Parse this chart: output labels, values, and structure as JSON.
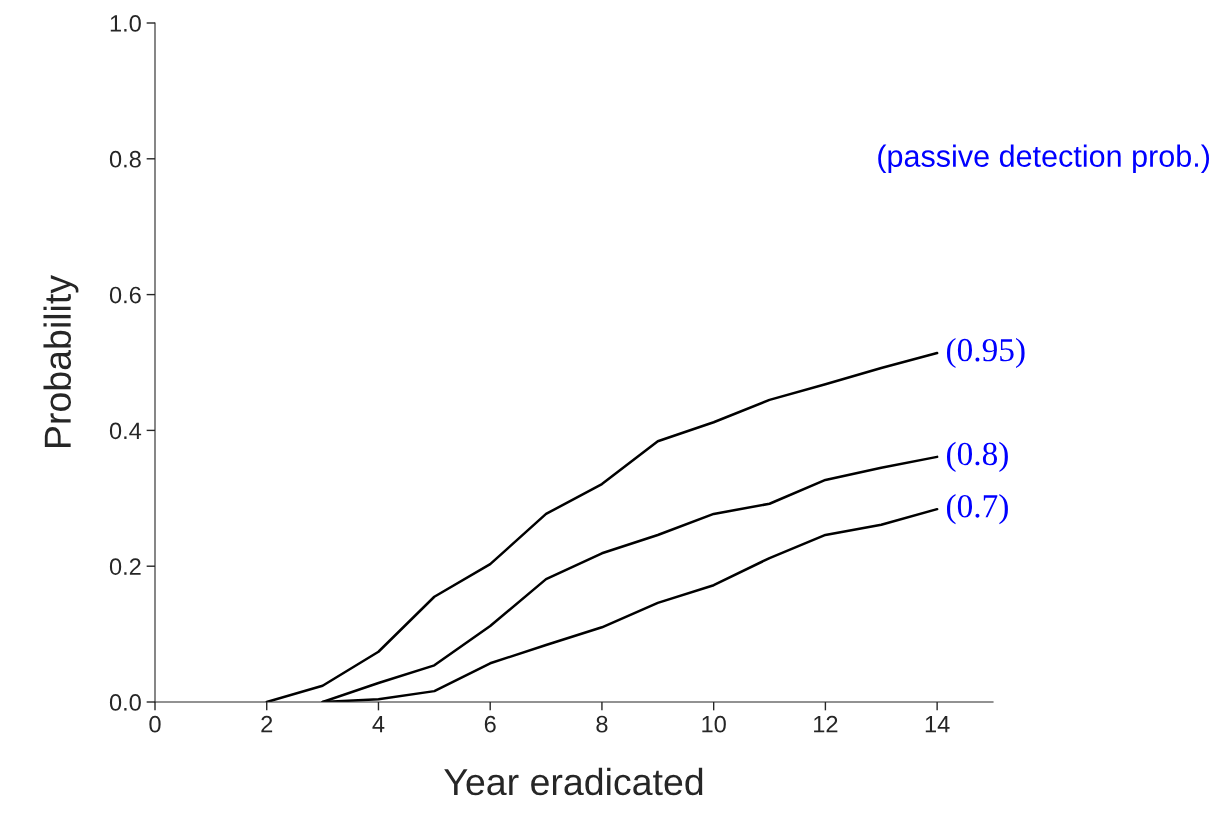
{
  "chart_data": {
    "type": "line",
    "xlabel": "Year eradicated",
    "ylabel": "Probability",
    "annotations": [
      "(passive detection prob.)"
    ],
    "xlim": [
      0,
      15
    ],
    "xticks": [
      0,
      2,
      4,
      6,
      8,
      10,
      12,
      14
    ],
    "ylim": [
      0,
      1.0
    ],
    "yticks": [
      {
        "value": 0,
        "label": "0.0"
      },
      {
        "value": 0.2,
        "label": "0.2"
      },
      {
        "value": 0.4,
        "label": "0.4"
      },
      {
        "value": 0.6,
        "label": "0.6"
      },
      {
        "value": 0.8,
        "label": "0.8"
      },
      {
        "value": 1.0,
        "label": "1.0"
      }
    ],
    "grid": false,
    "legend": false,
    "marker": "none",
    "line_style": "solid",
    "series": [
      {
        "name": "(0.95)",
        "color": "#000000",
        "x": [
          2,
          3,
          4,
          5,
          6,
          7,
          8,
          9,
          10,
          11,
          12,
          13,
          14
        ],
        "values": [
          0,
          0.024,
          0.074,
          0.155,
          0.203,
          0.277,
          0.321,
          0.384,
          0.412,
          0.445,
          0.468,
          0.492,
          0.514
        ]
      },
      {
        "name": "(0.8)",
        "color": "#000000",
        "x": [
          3,
          4,
          5,
          6,
          7,
          8,
          9,
          10,
          11,
          12,
          13,
          14
        ],
        "values": [
          0,
          0.028,
          0.054,
          0.112,
          0.181,
          0.219,
          0.246,
          0.277,
          0.292,
          0.327,
          0.345,
          0.361
        ]
      },
      {
        "name": "(0.7)",
        "color": "#000000",
        "x": [
          3,
          4,
          5,
          6,
          7,
          8,
          9,
          10,
          11,
          12,
          13,
          14
        ],
        "values": [
          0,
          0.004,
          0.016,
          0.057,
          0.084,
          0.11,
          0.146,
          0.172,
          0.212,
          0.246,
          0.261,
          0.284
        ]
      }
    ]
  }
}
